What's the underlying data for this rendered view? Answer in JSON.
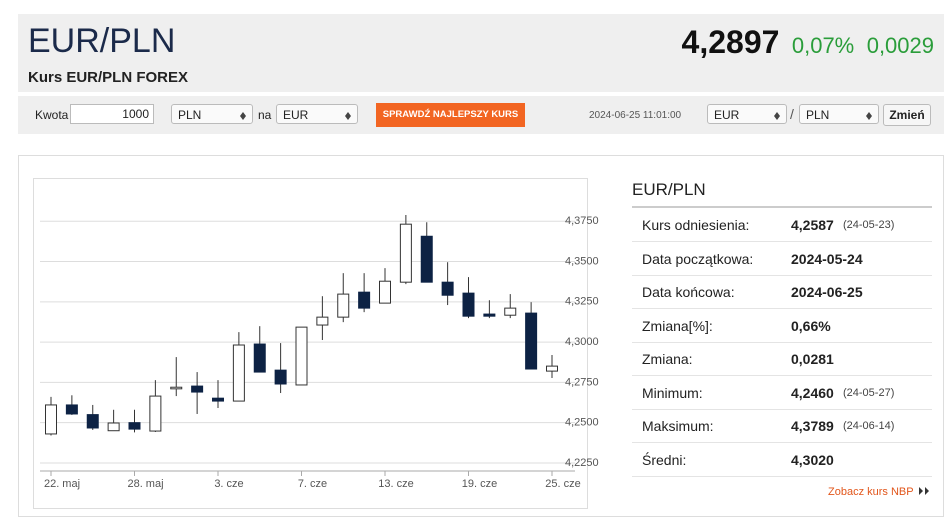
{
  "header": {
    "title": "EUR/PLN",
    "subtitle": "Kurs EUR/PLN FOREX",
    "price": "4,2897",
    "change_pct": "0,07%",
    "change": "0,0029"
  },
  "converter": {
    "amount_label": "Kwota",
    "amount": "1000",
    "from": "PLN",
    "connector": "na",
    "to": "EUR",
    "button": "SPRAWDŹ NAJLEPSZY KURS",
    "timestamp": "2024-06-25 11:01:00",
    "base": "EUR",
    "separator": "/",
    "quote": "PLN",
    "swap": "Zmień"
  },
  "chart_data": {
    "type": "candlestick",
    "categories": [
      "22. maj",
      null,
      null,
      null,
      "28. maj",
      null,
      null,
      null,
      "3. cze",
      null,
      null,
      null,
      "7. cze",
      null,
      null,
      null,
      "13. cze",
      null,
      null,
      null,
      "19. cze",
      null,
      null,
      null,
      "25. cze"
    ],
    "series": [
      {
        "up_color": "#ffffff",
        "down_color": "#0d2244",
        "edge_color": "#333333",
        "open": [
          4.243,
          4.261,
          4.255,
          4.245,
          4.25,
          4.2448,
          4.271,
          4.2727,
          4.2652,
          4.2634,
          4.2988,
          4.2826,
          4.2734,
          4.3106,
          4.3155,
          4.331,
          4.3242,
          4.3372,
          4.3657,
          4.3372,
          4.3304,
          4.3174,
          4.3167,
          4.318,
          4.282
        ],
        "high": [
          4.266,
          4.267,
          4.261,
          4.258,
          4.258,
          4.2764,
          4.2907,
          4.2814,
          4.2764,
          4.3062,
          4.3099,
          4.2994,
          4.3093,
          4.3285,
          4.3428,
          4.3428,
          4.3459,
          4.3789,
          4.3744,
          4.3496,
          4.3403,
          4.326,
          4.3298,
          4.3248,
          4.292
        ],
        "low": [
          4.242,
          4.2548,
          4.2455,
          4.246,
          4.244,
          4.2442,
          4.2665,
          4.2554,
          4.2591,
          4.2634,
          4.2814,
          4.2684,
          4.2734,
          4.3013,
          4.3124,
          4.3186,
          4.3242,
          4.336,
          4.3372,
          4.323,
          4.3149,
          4.3149,
          4.3149,
          4.2833,
          4.2777
        ],
        "close": [
          4.261,
          4.2554,
          4.2467,
          4.2498,
          4.246,
          4.2665,
          4.272,
          4.269,
          4.2634,
          4.2982,
          4.2814,
          4.274,
          4.3093,
          4.3155,
          4.3298,
          4.3211,
          4.3378,
          4.3732,
          4.3372,
          4.3291,
          4.3161,
          4.3161,
          4.3211,
          4.2833,
          4.2851
        ]
      }
    ],
    "ylim": [
      4.22,
      4.4
    ],
    "yticks": [
      {
        "value": 4.225,
        "label": "4,2250"
      },
      {
        "value": 4.25,
        "label": "4,2500"
      },
      {
        "value": 4.275,
        "label": "4,2750"
      },
      {
        "value": 4.3,
        "label": "4,3000"
      },
      {
        "value": 4.325,
        "label": "4,3250"
      },
      {
        "value": 4.35,
        "label": "4,3500"
      },
      {
        "value": 4.375,
        "label": "4,3750"
      }
    ],
    "grid": true
  },
  "stats": {
    "title": "EUR/PLN",
    "rows": [
      {
        "label": "Kurs odniesienia:",
        "value": "4,2587",
        "date": "(24-05-23)"
      },
      {
        "label": "Data początkowa:",
        "value": "2024-05-24"
      },
      {
        "label": "Data końcowa:",
        "value": "2024-06-25"
      },
      {
        "label": "Zmiana[%]:",
        "value": "0,66%"
      },
      {
        "label": "Zmiana:",
        "value": "0,0281"
      },
      {
        "label": "Minimum:",
        "value": "4,2460",
        "date": "(24-05-27)"
      },
      {
        "label": "Maksimum:",
        "value": "4,3789",
        "date": "(24-06-14)"
      },
      {
        "label": "Średni:",
        "value": "4,3020"
      }
    ]
  },
  "footer_link": "Zobacz kurs NBP"
}
